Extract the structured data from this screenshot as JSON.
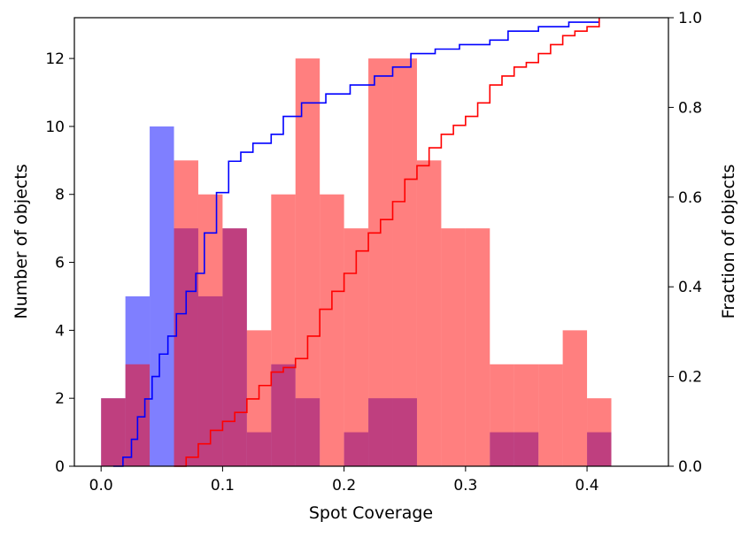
{
  "chart_data": {
    "type": "bar",
    "title": "",
    "xlabel": "Spot Coverage",
    "ylabel": "Number of objects",
    "y2label": "Fraction of objects",
    "xlim": [
      -0.022,
      0.467
    ],
    "ylim": [
      0,
      13.2
    ],
    "y2lim": [
      0,
      1.0
    ],
    "grid": false,
    "legend": "none",
    "xticks": [
      "0.0",
      "0.1",
      "0.2",
      "0.3",
      "0.4"
    ],
    "yticks": [
      "0",
      "2",
      "4",
      "6",
      "8",
      "10",
      "12"
    ],
    "y2ticks": [
      "0.0",
      "0.2",
      "0.4",
      "0.6",
      "0.8",
      "1.0"
    ],
    "bin_width": 0.02,
    "colors": {
      "blue": "#0000ff",
      "red": "#ff0000",
      "bar_alpha": 0.5
    },
    "series": [
      {
        "kind": "histogram",
        "color": "#0000ff",
        "bins": [
          0.0,
          0.02,
          0.04,
          0.06,
          0.08,
          0.1,
          0.12,
          0.14,
          0.16,
          0.18,
          0.2,
          0.22,
          0.24,
          0.26,
          0.28,
          0.3,
          0.32,
          0.34,
          0.36,
          0.38,
          0.4
        ],
        "values": [
          2,
          5,
          10,
          7,
          5,
          7,
          1,
          3,
          2,
          0,
          1,
          2,
          2,
          0,
          0,
          0,
          1,
          1,
          0,
          0,
          1
        ]
      },
      {
        "kind": "histogram",
        "color": "#ff0000",
        "bins": [
          0.0,
          0.02,
          0.04,
          0.06,
          0.08,
          0.1,
          0.12,
          0.14,
          0.16,
          0.18,
          0.2,
          0.22,
          0.24,
          0.26,
          0.28,
          0.3,
          0.32,
          0.34,
          0.36,
          0.38,
          0.4
        ],
        "values": [
          2,
          3,
          0,
          9,
          8,
          7,
          4,
          8,
          12,
          8,
          7,
          12,
          12,
          9,
          7,
          7,
          3,
          3,
          3,
          4,
          2
        ]
      },
      {
        "kind": "cumulative",
        "axis": "right",
        "color": "#0000ff",
        "x": [
          0.01,
          0.018,
          0.025,
          0.03,
          0.036,
          0.042,
          0.048,
          0.055,
          0.062,
          0.07,
          0.078,
          0.085,
          0.095,
          0.105,
          0.115,
          0.125,
          0.14,
          0.15,
          0.165,
          0.185,
          0.205,
          0.225,
          0.24,
          0.255,
          0.275,
          0.295,
          0.32,
          0.335,
          0.36,
          0.385,
          0.41
        ],
        "values": [
          0.0,
          0.02,
          0.06,
          0.11,
          0.15,
          0.2,
          0.25,
          0.29,
          0.34,
          0.39,
          0.43,
          0.52,
          0.61,
          0.68,
          0.7,
          0.72,
          0.74,
          0.78,
          0.81,
          0.83,
          0.85,
          0.87,
          0.89,
          0.92,
          0.93,
          0.94,
          0.95,
          0.97,
          0.98,
          0.99,
          1.0
        ]
      },
      {
        "kind": "cumulative",
        "axis": "right",
        "color": "#ff0000",
        "x": [
          0.06,
          0.07,
          0.08,
          0.09,
          0.1,
          0.11,
          0.12,
          0.13,
          0.14,
          0.15,
          0.16,
          0.17,
          0.18,
          0.19,
          0.2,
          0.21,
          0.22,
          0.23,
          0.24,
          0.25,
          0.26,
          0.27,
          0.28,
          0.29,
          0.3,
          0.31,
          0.32,
          0.33,
          0.34,
          0.35,
          0.36,
          0.37,
          0.38,
          0.39,
          0.4,
          0.41
        ],
        "values": [
          0.0,
          0.02,
          0.05,
          0.08,
          0.1,
          0.12,
          0.15,
          0.18,
          0.21,
          0.22,
          0.24,
          0.29,
          0.35,
          0.39,
          0.43,
          0.48,
          0.52,
          0.55,
          0.59,
          0.64,
          0.67,
          0.71,
          0.74,
          0.76,
          0.78,
          0.81,
          0.85,
          0.87,
          0.89,
          0.9,
          0.92,
          0.94,
          0.96,
          0.97,
          0.98,
          1.0
        ]
      }
    ]
  }
}
